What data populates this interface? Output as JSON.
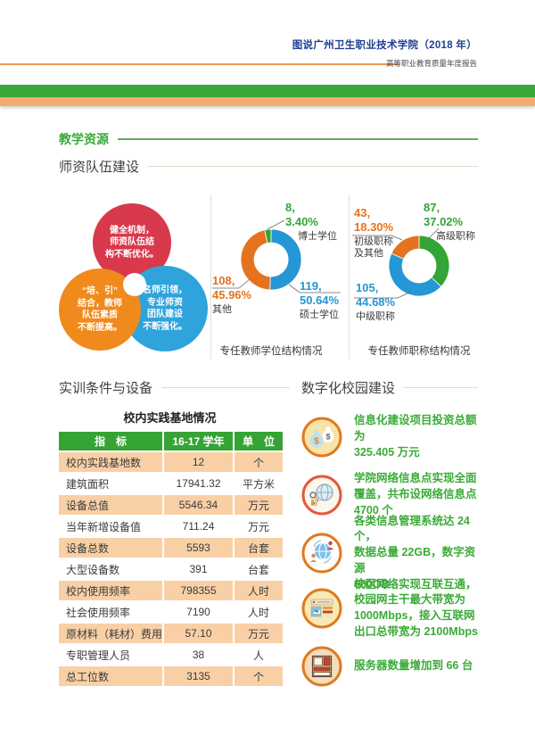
{
  "header": {
    "title": "图说广州卫生职业技术学院（2018 年）",
    "subtitle": "高等职业教育质量年度报告"
  },
  "sections": {
    "teaching_resources": "教学资源",
    "faculty_team": "师资队伍建设",
    "training_equipment": "实训条件与设备",
    "digital_campus": "数字化校园建设"
  },
  "bubbles": [
    {
      "text": "健全机制，\n师资队伍结\n构不断优化。",
      "color": "#d9394c"
    },
    {
      "text": "“培、引”\n结合，教师\n队伍素质\n不断提高。",
      "color": "#f08a1d"
    },
    {
      "text": "名师引领，\n专业师资\n团队建设\n不断强化。",
      "color": "#2fa3dc"
    }
  ],
  "chart_data": [
    {
      "type": "pie",
      "donut": true,
      "title": "专任教师学位结构情况",
      "slices": [
        {
          "label": "硕士学位",
          "count": 119,
          "pct": 50.64,
          "num_label": "119,",
          "pct_label": "50.64%",
          "color": "#2597d4"
        },
        {
          "label": "其他",
          "count": 108,
          "pct": 45.96,
          "num_label": "108,",
          "pct_label": "45.96%",
          "color": "#e5731d"
        },
        {
          "label": "博士学位",
          "count": 8,
          "pct": 3.4,
          "num_label": "8,",
          "pct_label": "3.40%",
          "color": "#33a437"
        }
      ]
    },
    {
      "type": "pie",
      "donut": true,
      "title": "专任教师职称结构情况",
      "slices": [
        {
          "label": "高级职称",
          "count": 87,
          "pct": 37.02,
          "num_label": "87,",
          "pct_label": "37.02%",
          "color": "#33a437"
        },
        {
          "label": "中级职称",
          "count": 105,
          "pct": 44.68,
          "num_label": "105,",
          "pct_label": "44.68%",
          "color": "#2597d4"
        },
        {
          "label": "初级职称及其他",
          "count": 43,
          "pct": 18.3,
          "num_label": "43,",
          "pct_label": "18.30%",
          "name_display": "初级职称\n及其他",
          "color": "#e5731d"
        }
      ]
    }
  ],
  "table": {
    "title": "校内实践基地情况",
    "headers": [
      "指　标",
      "16-17 学年",
      "单　位"
    ],
    "rows": [
      [
        "校内实践基地数",
        "12",
        "个"
      ],
      [
        "建筑面积",
        "17941.32",
        "平方米"
      ],
      [
        "设备总值",
        "5546.34",
        "万元"
      ],
      [
        "当年新增设备值",
        "711.24",
        "万元"
      ],
      [
        "设备总数",
        "5593",
        "台套"
      ],
      [
        "大型设备数",
        "391",
        "台套"
      ],
      [
        "校内使用频率",
        "798355",
        "人时"
      ],
      [
        "社会使用频率",
        "7190",
        "人时"
      ],
      [
        "原材料（耗材）费用",
        "57.10",
        "万元"
      ],
      [
        "专职管理人员",
        "38",
        "人"
      ],
      [
        "总工位数",
        "3135",
        "个"
      ]
    ]
  },
  "digital_items": [
    {
      "icon": "money-bags-icon",
      "text": "信息化建设项目投资总额为\n325.405 万元"
    },
    {
      "icon": "network-points-icon",
      "text": "学院网络信息点实现全面\n覆盖，共布设网络信息点\n4700 个"
    },
    {
      "icon": "info-systems-icon",
      "text": "各类信息管理系统达 24 个，\n数据总量 22GB，数字资源\n600GB"
    },
    {
      "icon": "bandwidth-icon",
      "text": "校区网络实现互联互通，\n校园网主干最大带宽为\n1000Mbps，接入互联网\n出口总带宽为 2100Mbps"
    },
    {
      "icon": "server-icon",
      "text": "服务器数量增加到 66 台"
    }
  ],
  "colors": {
    "brand_green": "#39a839",
    "band_orange": "#f3aa6e",
    "rule_orange": "#ec9c4e",
    "navy_title": "#1e3f93",
    "chart_blue": "#2597d4",
    "chart_orange": "#e5731d",
    "chart_green": "#33a437",
    "bubble_red": "#d9394c",
    "bubble_orange": "#f08a1d",
    "bubble_blue": "#2fa3dc",
    "table_header_green": "#35a435",
    "table_row_peach": "#f9d0a6",
    "item_text_green": "#3aab37"
  }
}
